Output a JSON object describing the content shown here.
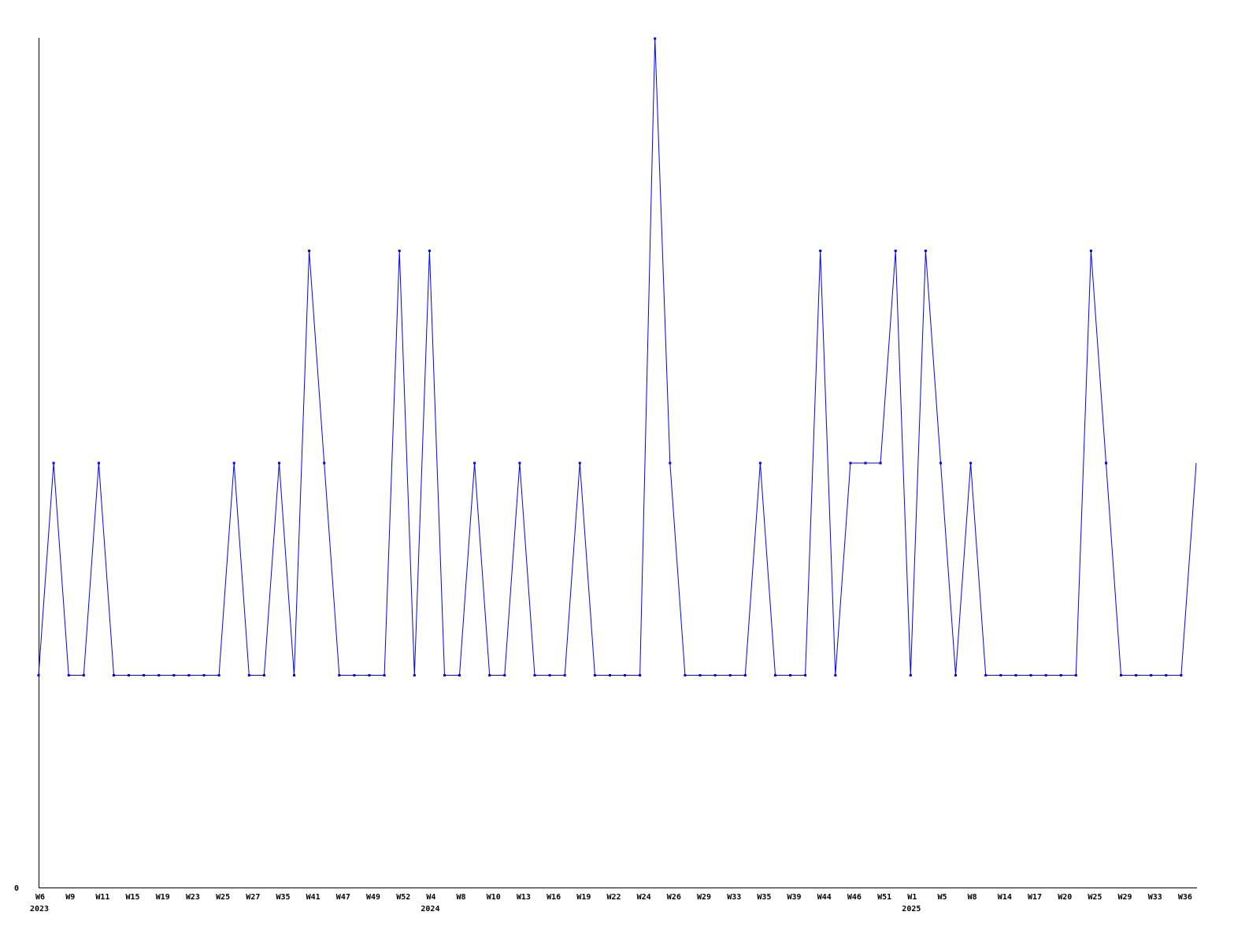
{
  "chart_data": {
    "type": "line",
    "title": "",
    "xlabel": "",
    "ylabel": "",
    "ylim": [
      0,
      4
    ],
    "y_tick_labels": [
      "0"
    ],
    "grid": false,
    "legend": "none",
    "line_color": "#0000ff",
    "x_tick_labels": [
      "W6",
      "W9",
      "W11",
      "W15",
      "W19",
      "W23",
      "W25",
      "W27",
      "W35",
      "W41",
      "W47",
      "W49",
      "W52",
      "W4",
      "W8",
      "W10",
      "W13",
      "W16",
      "W19",
      "W22",
      "W24",
      "W26",
      "W29",
      "W33",
      "W35",
      "W39",
      "W44",
      "W46",
      "W51",
      "W1",
      "W5",
      "W8",
      "W14",
      "W17",
      "W20",
      "W25",
      "W29",
      "W33",
      "W36"
    ],
    "year_labels": [
      {
        "label": "2023",
        "at_tick": 0
      },
      {
        "label": "2024",
        "at_tick": 13
      },
      {
        "label": "2025",
        "at_tick": 29
      }
    ],
    "series": [
      {
        "values": [
          1,
          2,
          1,
          1,
          2,
          1,
          1,
          1,
          1,
          1,
          1,
          1,
          1,
          2,
          1,
          1,
          2,
          1,
          3,
          2,
          1,
          1,
          1,
          1,
          3,
          1,
          3,
          1,
          1,
          2,
          1,
          1,
          2,
          1,
          1,
          1,
          2,
          1,
          1,
          1,
          1,
          4,
          2,
          1,
          1,
          1,
          1,
          1,
          2,
          1,
          1,
          1,
          3,
          1,
          2,
          2,
          2,
          3,
          1,
          3,
          2,
          1,
          2,
          1,
          1,
          1,
          1,
          1,
          1,
          1,
          3,
          2,
          1,
          1,
          1,
          1,
          1,
          2
        ]
      }
    ]
  }
}
